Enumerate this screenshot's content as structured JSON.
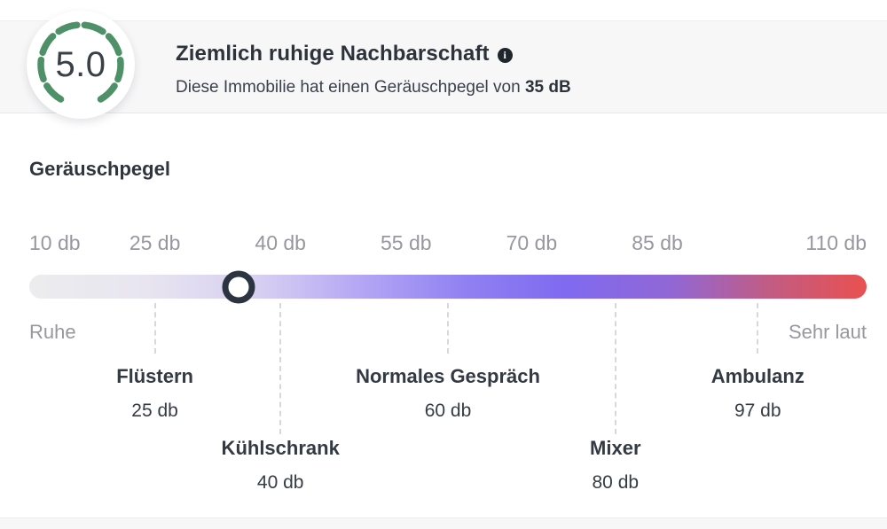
{
  "header": {
    "score": "5.0",
    "title": "Ziemlich ruhige Nachbarschaft",
    "subtitle_prefix": "Diese Immobilie hat einen Geräuschpegel von ",
    "subtitle_value": "35 dB"
  },
  "icons": {
    "info_glyph": "i"
  },
  "section_heading": "Geräuschpegel",
  "scale": {
    "min_db": 10,
    "max_db": 110,
    "current_db": 35,
    "unit": "db",
    "ticks": [
      {
        "label": "10 db",
        "db": 10
      },
      {
        "label": "25 db",
        "db": 25
      },
      {
        "label": "40 db",
        "db": 40
      },
      {
        "label": "55 db",
        "db": 55
      },
      {
        "label": "70 db",
        "db": 70
      },
      {
        "label": "85 db",
        "db": 85
      },
      {
        "label": "110 db",
        "db": 110
      }
    ],
    "left_label": "Ruhe",
    "right_label": "Sehr laut",
    "references": [
      {
        "name": "Flüstern",
        "value_label": "25 db",
        "db": 25
      },
      {
        "name": "Kühlschrank",
        "value_label": "40 db",
        "db": 40
      },
      {
        "name": "Normales Gespräch",
        "value_label": "60 db",
        "db": 60
      },
      {
        "name": "Mixer",
        "value_label": "80 db",
        "db": 80
      },
      {
        "name": "Ambulanz",
        "value_label": "97 db",
        "db": 97
      }
    ]
  },
  "colors": {
    "accent_green": "#4e9168",
    "score_text": "#3a4047",
    "band_background": "#f7f7f8",
    "bar_gradient_start": "#ececee",
    "bar_gradient_purple": "#7f6af0",
    "bar_gradient_end": "#e95150",
    "knob_ring": "#2b3440",
    "tick_text": "#97979f",
    "label_text": "#333a43"
  }
}
